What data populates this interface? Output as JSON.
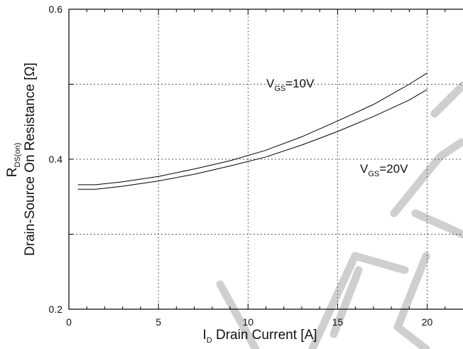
{
  "chart_data": {
    "type": "line",
    "xlabel": {
      "main": "I",
      "sub": "D",
      "rest": " Drain Current [A]"
    },
    "ylabel": {
      "line1_main": "R",
      "line1_sub": "DS(on)",
      "line2": "Drain-Source On Resistance [Ω]"
    },
    "xlim": [
      0,
      22
    ],
    "ylim": [
      0.2,
      0.6
    ],
    "x_ticks": [
      0,
      5,
      10,
      15,
      20
    ],
    "x_tick_labels": [
      "0",
      "5",
      "10",
      "15",
      "20"
    ],
    "y_ticks": [
      0.2,
      0.4,
      0.6
    ],
    "y_tick_labels": [
      "0.2",
      "0.4",
      "0.6"
    ],
    "y_grid": [
      0.3,
      0.4,
      0.5
    ],
    "grid": true,
    "series": [
      {
        "name": "VGS=10V",
        "x": [
          0.5,
          1.5,
          3,
          5,
          7,
          9,
          11,
          13,
          15,
          17,
          19,
          20
        ],
        "y": [
          0.366,
          0.366,
          0.37,
          0.377,
          0.387,
          0.398,
          0.412,
          0.43,
          0.451,
          0.473,
          0.5,
          0.515
        ]
      },
      {
        "name": "VGS=20V",
        "x": [
          0.5,
          1.5,
          3,
          5,
          7,
          9,
          11,
          13,
          15,
          17,
          19,
          20
        ],
        "y": [
          0.36,
          0.36,
          0.364,
          0.371,
          0.38,
          0.391,
          0.403,
          0.419,
          0.437,
          0.457,
          0.479,
          0.493
        ]
      }
    ],
    "annotations": [
      {
        "main": "V",
        "sub": "GS",
        "rest": "=10V",
        "series": 0
      },
      {
        "main": "V",
        "sub": "GS",
        "rest": "=20V",
        "series": 1
      }
    ]
  },
  "watermark": {
    "color": "#cfcfcf"
  }
}
